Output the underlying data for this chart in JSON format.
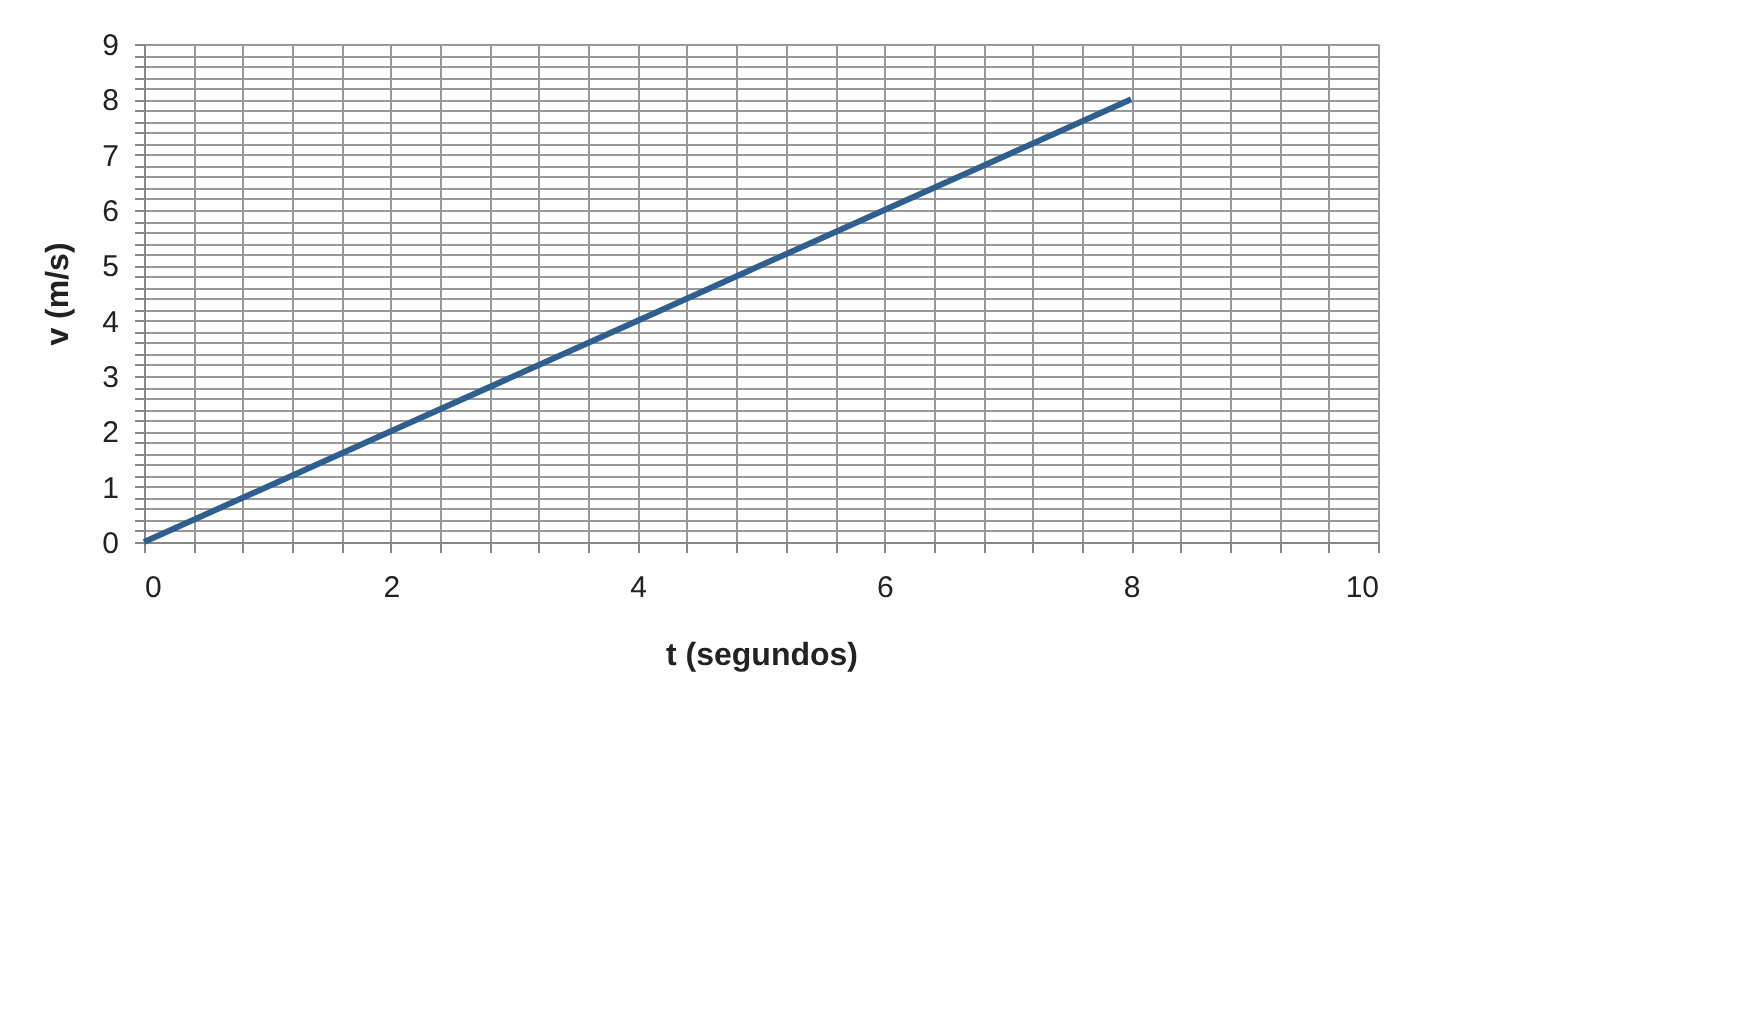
{
  "chart_data": {
    "type": "line",
    "xlabel": "t (segundos)",
    "ylabel": "v (m/s)",
    "x": [
      0,
      1,
      2,
      3,
      4,
      5,
      6,
      7,
      8
    ],
    "series": [
      {
        "color": "#2f5f8f",
        "values": [
          0,
          1,
          2,
          3,
          4,
          5,
          6,
          7,
          8
        ]
      }
    ],
    "xlim": [
      0,
      10
    ],
    "ylim": [
      0,
      9
    ],
    "xticks": [
      0,
      {
        "value": 0.4,
        "label": null
      },
      {
        "value": 0.8,
        "label": null
      },
      {
        "value": 1.2,
        "label": null
      },
      {
        "value": 1.6,
        "label": null
      },
      2,
      {
        "value": 2.4,
        "label": null
      },
      {
        "value": 2.8,
        "label": null
      },
      {
        "value": 3.2,
        "label": null
      },
      {
        "value": 3.6,
        "label": null
      },
      4,
      {
        "value": 4.4,
        "label": null
      },
      {
        "value": 4.8,
        "label": null
      },
      {
        "value": 5.2,
        "label": null
      },
      {
        "value": 5.6,
        "label": null
      },
      6,
      {
        "value": 6.4,
        "label": null
      },
      {
        "value": 6.8,
        "label": null
      },
      {
        "value": 7.2,
        "label": null
      },
      {
        "value": 7.6,
        "label": null
      },
      8,
      {
        "value": 8.4,
        "label": null
      },
      {
        "value": 8.8,
        "label": null
      },
      {
        "value": 9.2,
        "label": null
      },
      {
        "value": 9.6,
        "label": null
      },
      10
    ],
    "yticks": [
      0,
      {
        "value": 0.2,
        "label": null
      },
      {
        "value": 0.4,
        "label": null
      },
      {
        "value": 0.6,
        "label": null
      },
      {
        "value": 0.8,
        "label": null
      },
      1,
      {
        "value": 1.2,
        "label": null
      },
      {
        "value": 1.4,
        "label": null
      },
      {
        "value": 1.6,
        "label": null
      },
      {
        "value": 1.8,
        "label": null
      },
      2,
      {
        "value": 2.2,
        "label": null
      },
      {
        "value": 2.4,
        "label": null
      },
      {
        "value": 2.6,
        "label": null
      },
      {
        "value": 2.8,
        "label": null
      },
      3,
      {
        "value": 3.2,
        "label": null
      },
      {
        "value": 3.4,
        "label": null
      },
      {
        "value": 3.6,
        "label": null
      },
      {
        "value": 3.8,
        "label": null
      },
      4,
      {
        "value": 4.2,
        "label": null
      },
      {
        "value": 4.4,
        "label": null
      },
      {
        "value": 4.6,
        "label": null
      },
      {
        "value": 4.8,
        "label": null
      },
      5,
      {
        "value": 5.2,
        "label": null
      },
      {
        "value": 5.4,
        "label": null
      },
      {
        "value": 5.6,
        "label": null
      },
      {
        "value": 5.8,
        "label": null
      },
      6,
      {
        "value": 6.2,
        "label": null
      },
      {
        "value": 6.4,
        "label": null
      },
      {
        "value": 6.6,
        "label": null
      },
      {
        "value": 6.8,
        "label": null
      },
      7,
      {
        "value": 7.2,
        "label": null
      },
      {
        "value": 7.4,
        "label": null
      },
      {
        "value": 7.6,
        "label": null
      },
      {
        "value": 7.8,
        "label": null
      },
      8,
      {
        "value": 8.2,
        "label": null
      },
      {
        "value": 8.4,
        "label": null
      },
      {
        "value": 8.6,
        "label": null
      },
      {
        "value": 8.8,
        "label": null
      },
      9
    ],
    "grid": true,
    "marker": "none",
    "line_style": "solid"
  }
}
